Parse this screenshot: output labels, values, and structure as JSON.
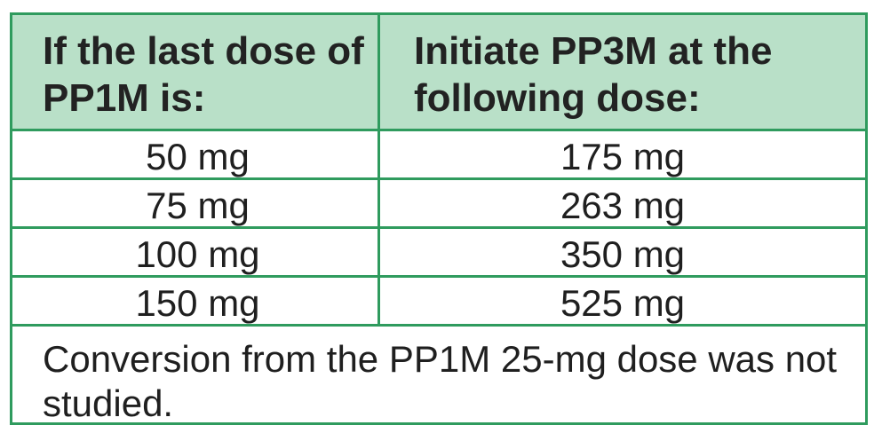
{
  "table": {
    "headers": {
      "left": "If the last dose of PP1M is:",
      "right": "Initiate PP3M at the following dose:"
    },
    "rows": [
      {
        "pp1m_dose": "50 mg",
        "pp3m_dose": "175 mg"
      },
      {
        "pp1m_dose": "75 mg",
        "pp3m_dose": "263 mg"
      },
      {
        "pp1m_dose": "100 mg",
        "pp3m_dose": "350 mg"
      },
      {
        "pp1m_dose": "150 mg",
        "pp3m_dose": "525 mg"
      }
    ],
    "note": "Conversion from the PP1M 25-mg dose was not studied.",
    "colors": {
      "border": "#2f9b5e",
      "header_background": "#b9e0c8"
    }
  }
}
